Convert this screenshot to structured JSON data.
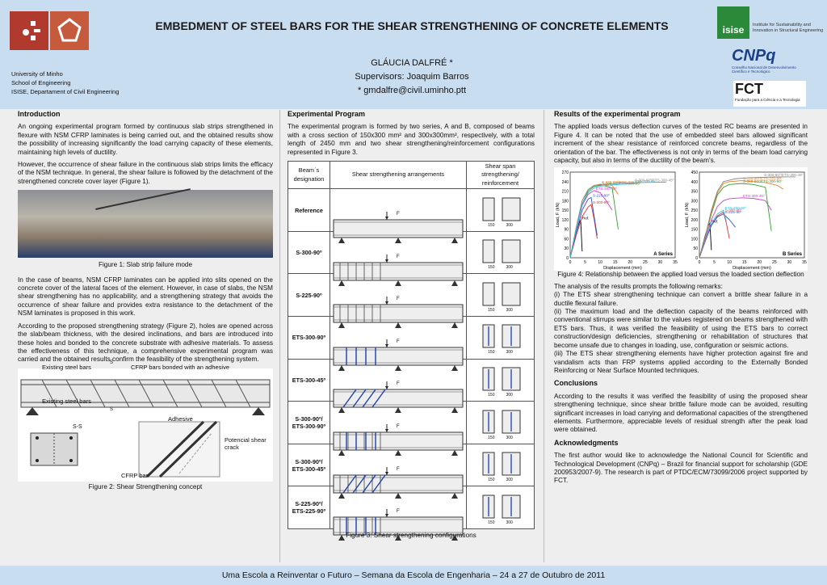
{
  "header": {
    "title": "EMBEDMENT OF STEEL BARS FOR THE SHEAR STRENGTHENING OF CONCRETE ELEMENTS",
    "author": "GLÁUCIA DALFRÉ *",
    "supervisors": "Supervisors:  Joaquim Barros",
    "email": "* gmdalfre@civil.uminho.ptt",
    "affiliation": [
      "University of Minho",
      "School of Engineering",
      "ISISE, Departament of Civil Engineering"
    ],
    "isise_name": "isise",
    "isise_text": [
      "Institute for Sustainability and",
      "Innovation in Structural Engineering"
    ],
    "cnpq": "CNPq",
    "cnpq_sub": [
      "Conselho Nacional de Desenvolvimento",
      "Científico e Tecnológico"
    ],
    "fct": "FCT",
    "fct_sub": "Fundação para a Ciência e a Tecnologia"
  },
  "intro": {
    "heading": "Introduction",
    "p1": "An ongoing experimental program formed by continuous slab strips strengthened in flexure with NSM CFRP laminates is being carried out, and the obtained results show the possibility of increasing significantly the load carrying capacity of these elements, maintaining high levels of ductility.",
    "p2": "However, the occurrence of shear failure in the continuous slab strips limits the efficacy of the NSM technique. In general, the shear failure is followed by the detachment of the strengthened concrete cover layer (Figure 1).",
    "fig1_caption": "Figure 1: Slab strip failure mode",
    "p3": "In the case of beams, NSM CFRP laminates can be applied into slits opened on the concrete cover of the lateral faces of the element. However, in case of slabs, the NSM shear strengthening has no applicability, and a strengthening strategy that avoids the occurrence of shear failure and provides extra resistance to the detachment of the NSM laminates is proposed in this work.",
    "p4": "According to the proposed strengthening strategy (Figure 2), holes are opened across the slab/beam thickness, with the desired inclinations, and bars are introduced into these holes and bonded to the concrete substrate with adhesive materials. To assess the effectiveness of this technique, a comprehensive experimental program was carried and the obtained results confirm the feasibility of the strengthening system.",
    "fig2_labels": {
      "existing1": "Existing steel bars",
      "cfrp": "CFRP bars bonded with an adhesive",
      "existing2": "Existing steel bars",
      "ss": "S-S",
      "s1": "S",
      "s2": "S",
      "adhesive": "Adhesive",
      "crack": "Potencial shear crack",
      "cfrpbar": "CFRP bar"
    },
    "fig2_caption": "Figure 2: Shear Strengthening concept"
  },
  "experimental": {
    "heading": "Experimental Program",
    "p1": "The experimental program is formed by two series, A and B, composed of beams with a cross section of 150x300 mm² and 300x300mm², respectively, with a total length of 2450 mm and two shear strengthening/reinforcement configurations represented in Figure 3.",
    "table_headers": [
      "Beam´s designation",
      "Shear strengthening arrangements",
      "Shear span strengthening/ reinforcement"
    ],
    "rows": [
      {
        "label": "Reference",
        "spacing": ""
      },
      {
        "label": "S-300-90º",
        "spacing": "300"
      },
      {
        "label": "S-225-90º",
        "spacing": "225"
      },
      {
        "label": "ETS-300-90º",
        "spacing": "300"
      },
      {
        "label": "ETS-300-45º",
        "spacing": "300"
      },
      {
        "label": "S-300-90º/ ETS-300-90º",
        "spacing": "300"
      },
      {
        "label": "S-300-90º/ ETS-300-45º",
        "spacing": "300"
      },
      {
        "label": "S-225-90º/ ETS-225-90º",
        "spacing": "225"
      }
    ],
    "load_label": "F",
    "sec_labels": [
      "150",
      "300"
    ],
    "fig3_caption": "Figure 3: Shear strengthening configurations"
  },
  "results": {
    "heading": "Results of the experimental program",
    "p1": "The applied loads versus deflection curves of the tested RC beams are presented in Figure 4. It can be noted that the use of embedded steel bars allowed significant increment of the shear resistance of reinforced concrete beams, regardless of the orientation of the bar. The effectiveness is not only in terms of the beam load carrying capacity, but also in terms of the ductility of the beam’s.",
    "fig4_caption": "Figure 4: Relationship between the applied load versus the loaded section deflection",
    "p2": "The analysis of the results prompts the following remarks:",
    "p3": "(i) The ETS shear strengthening technique can convert a brittle shear failure in a ductile flexural failure.",
    "p4": "(ii) The maximum load and the deflection capacity of the beams reinforced with conventional stirrups were similar to the values registered on beams strengthened with ETS bars. Thus, it was verified the feasibility of using the ETS bars to correct construction/design deficiencies, strengthening or rehabilitation of structures that become unsafe due to changes in loading, use, configuration or seismic actions.",
    "p5": "(iii) The ETS shear strengthening elements have higher protection against fire and vandalism acts than FRP systems applied according to the Externally Bonded Reinforcing or Near Surface Mounted techniques.",
    "conclusions_heading": "Conclusions",
    "conclusions": "According to the results it was verified the feasibility of using the proposed shear strengthening technique, since shear brittle failure mode can be avoided, resulting significant increases in load carrying and deformational capacities of the strengthened elements. Furthermore, appreciable levels of residual strength after the peak load were obtained.",
    "ack_heading": "Acknowledgments",
    "ack": "The first author would like to acknowledge the National Council for Scientific and Technological Development (CNPq) – Brazil for financial support for scholarship (GDE 200953/2007-9). The research is part of PTDC/ECM/73099/2006 project supported by FCT."
  },
  "chart_data": [
    {
      "type": "line",
      "title": "A Series",
      "xlabel": "Displacement (mm)",
      "ylabel": "Load, F (kN)",
      "xlim": [
        0,
        35
      ],
      "ylim": [
        0,
        270
      ],
      "xticks": [
        0,
        5,
        10,
        15,
        20,
        25,
        30,
        35
      ],
      "yticks": [
        0,
        30,
        60,
        90,
        120,
        150,
        180,
        210,
        240,
        270
      ],
      "series": [
        {
          "name": "Ref.",
          "color": "#000000",
          "x": [
            0,
            1,
            2,
            3,
            3.5,
            4
          ],
          "y": [
            0,
            40,
            80,
            110,
            118,
            20
          ]
        },
        {
          "name": "S-300-90º",
          "color": "#e03030",
          "x": [
            0,
            2,
            4,
            6,
            7,
            8,
            9
          ],
          "y": [
            0,
            70,
            130,
            160,
            168,
            120,
            60
          ]
        },
        {
          "name": "S-225-90º",
          "color": "#3050d0",
          "x": [
            0,
            2,
            4,
            6,
            7,
            8,
            9
          ],
          "y": [
            0,
            80,
            150,
            185,
            190,
            130,
            70
          ]
        },
        {
          "name": "ETS-300-45º",
          "color": "#d040d0",
          "x": [
            0,
            2,
            4,
            6,
            8,
            10,
            12,
            14
          ],
          "y": [
            0,
            90,
            165,
            200,
            212,
            205,
            180,
            150
          ]
        },
        {
          "name": "S-300-90º/ETS-300-90º",
          "color": "#30a030",
          "x": [
            0,
            2,
            4,
            6,
            8,
            10,
            12,
            14,
            16
          ],
          "y": [
            0,
            90,
            170,
            210,
            225,
            228,
            226,
            220,
            90
          ]
        },
        {
          "name": "S-225-90º/ETS-225-90º",
          "color": "#e08020",
          "x": [
            0,
            2,
            4,
            6,
            8,
            10,
            12,
            14,
            16
          ],
          "y": [
            0,
            95,
            180,
            215,
            228,
            232,
            230,
            228,
            200
          ]
        },
        {
          "name": "S-300-90º/ETS-300-45º",
          "color": "#888888",
          "x": [
            0,
            2,
            4,
            6,
            8,
            12,
            16,
            20,
            24,
            28,
            32
          ],
          "y": [
            0,
            95,
            180,
            215,
            228,
            232,
            235,
            236,
            237,
            238,
            238
          ]
        },
        {
          "name": "ETS-300-90º",
          "color": "#30c0e0",
          "x": [
            0,
            2,
            4,
            6,
            8,
            10,
            14,
            18,
            22
          ],
          "y": [
            0,
            90,
            170,
            205,
            220,
            226,
            230,
            232,
            234
          ]
        }
      ]
    },
    {
      "type": "line",
      "title": "B Series",
      "xlabel": "Displacement (mm)",
      "ylabel": "Load, F (kN)",
      "xlim": [
        0,
        35
      ],
      "ylim": [
        0,
        450
      ],
      "xticks": [
        0,
        5,
        10,
        15,
        20,
        25,
        30,
        35
      ],
      "yticks": [
        0,
        50,
        100,
        150,
        200,
        250,
        300,
        350,
        400,
        450
      ],
      "series": [
        {
          "name": "Ref.",
          "color": "#000000",
          "x": [
            0,
            1,
            2,
            3,
            3.5,
            4
          ],
          "y": [
            0,
            60,
            120,
            170,
            180,
            40
          ]
        },
        {
          "name": "S-300-90º",
          "color": "#e03030",
          "x": [
            0,
            2,
            4,
            6,
            8,
            9,
            10
          ],
          "y": [
            0,
            90,
            170,
            220,
            240,
            180,
            100
          ]
        },
        {
          "name": "S-225-90º",
          "color": "#3050d0",
          "x": [
            0,
            2,
            4,
            6,
            8,
            10,
            12
          ],
          "y": [
            0,
            90,
            170,
            215,
            230,
            200,
            160
          ]
        },
        {
          "name": "ETS-300-90º",
          "color": "#30c0e0",
          "x": [
            0,
            2,
            4,
            6,
            8,
            9
          ],
          "y": [
            0,
            95,
            180,
            230,
            250,
            190
          ]
        },
        {
          "name": "ETS-300-45º",
          "color": "#d040d0",
          "x": [
            0,
            2,
            4,
            6,
            8,
            10,
            14,
            18,
            22,
            24
          ],
          "y": [
            0,
            100,
            200,
            270,
            300,
            310,
            315,
            312,
            300,
            250
          ]
        },
        {
          "name": "S-300-90º/ETS-300-90º",
          "color": "#30a030",
          "x": [
            0,
            2,
            4,
            6,
            8,
            10,
            14,
            18,
            22,
            24
          ],
          "y": [
            0,
            110,
            230,
            330,
            370,
            385,
            390,
            385,
            370,
            140
          ]
        },
        {
          "name": "S-225-90º/ETS-225-90º",
          "color": "#e08020",
          "x": [
            0,
            2,
            4,
            6,
            8,
            10,
            14,
            18,
            22,
            26,
            28
          ],
          "y": [
            0,
            110,
            240,
            340,
            390,
            400,
            405,
            400,
            395,
            380,
            360
          ]
        },
        {
          "name": "S-300-90º/ETS-300-45º",
          "color": "#888888",
          "x": [
            0,
            2,
            4,
            6,
            8,
            12,
            16,
            20,
            24,
            28,
            32
          ],
          "y": [
            0,
            115,
            250,
            350,
            400,
            415,
            420,
            422,
            424,
            425,
            425
          ]
        }
      ]
    }
  ],
  "footer": {
    "text": "Uma Escola a Reinventar o Futuro – Semana da Escola de Engenharia – 24 a 27 de Outubro de 2011"
  }
}
